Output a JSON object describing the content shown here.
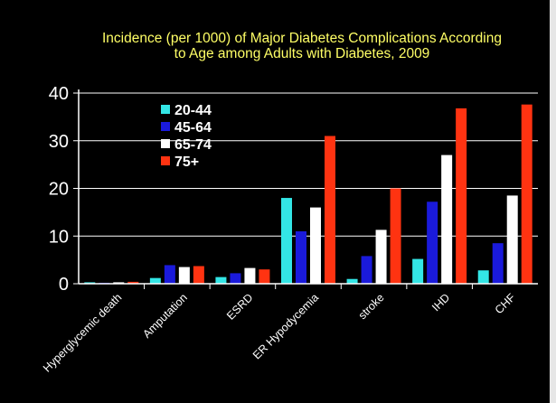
{
  "chart_data": {
    "type": "bar",
    "title_lines": [
      "Incidence (per 1000) of Major Diabetes Complications According",
      "to Age among Adults with Diabetes, 2009"
    ],
    "xlabel": "",
    "ylabel": "",
    "ylim": [
      0,
      40
    ],
    "yticks": [
      "0",
      "10",
      "20",
      "30",
      "40"
    ],
    "grid": true,
    "legend_position": "top-left",
    "categories": [
      "Hyperglycemic death",
      "Amputation",
      "ESRD",
      "ER Hypodycemia",
      "stroke",
      "IHD",
      "CHF"
    ],
    "series": [
      {
        "name": "20-44",
        "color": "#33e6e6",
        "values": [
          0.3,
          1.2,
          1.4,
          18.0,
          1.0,
          5.2,
          2.8
        ]
      },
      {
        "name": "45-64",
        "color": "#1a1adb",
        "values": [
          0.2,
          3.9,
          2.2,
          11.0,
          5.8,
          17.2,
          8.5
        ]
      },
      {
        "name": "65-74",
        "color": "#ffffff",
        "values": [
          0.3,
          3.5,
          3.3,
          16.0,
          11.3,
          27.0,
          18.5
        ]
      },
      {
        "name": "75+",
        "color": "#ff3311",
        "values": [
          0.4,
          3.7,
          3.0,
          31.0,
          20.0,
          36.8,
          37.6
        ]
      }
    ]
  }
}
